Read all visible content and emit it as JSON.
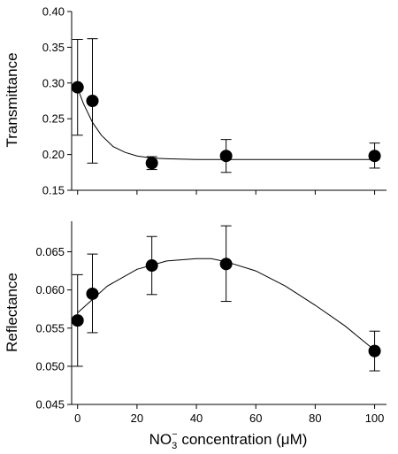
{
  "chart_data": [
    {
      "type": "scatter",
      "ylabel": "Transmittance",
      "xlabel": "",
      "ylim": [
        0.15,
        0.4
      ],
      "yticks": [
        0.15,
        0.2,
        0.25,
        0.3,
        0.35,
        0.4
      ],
      "ytick_labels": [
        "0.15",
        "0.20",
        "0.25",
        "0.30",
        "0.35",
        "0.40"
      ],
      "xlim": [
        -2,
        104
      ],
      "xticks": [
        0,
        20,
        40,
        60,
        80,
        100
      ],
      "show_xtick_labels": false,
      "fit": "exponential decay",
      "points": [
        {
          "x": 0,
          "y": 0.294,
          "err_low": 0.227,
          "err_high": 0.361
        },
        {
          "x": 5,
          "y": 0.275,
          "err_low": 0.188,
          "err_high": 0.362
        },
        {
          "x": 25,
          "y": 0.188,
          "err_low": 0.179,
          "err_high": 0.197
        },
        {
          "x": 50,
          "y": 0.198,
          "err_low": 0.175,
          "err_high": 0.221
        },
        {
          "x": 100,
          "y": 0.198,
          "err_low": 0.181,
          "err_high": 0.216
        }
      ],
      "fit_curve": {
        "x": [
          0,
          2,
          5,
          8,
          12,
          16,
          20,
          25,
          30,
          40,
          50,
          60,
          70,
          80,
          90,
          100
        ],
        "y": [
          0.293,
          0.271,
          0.245,
          0.227,
          0.211,
          0.203,
          0.198,
          0.195,
          0.194,
          0.193,
          0.193,
          0.193,
          0.193,
          0.193,
          0.193,
          0.193
        ]
      }
    },
    {
      "type": "scatter",
      "ylabel": "Reflectance",
      "xlabel": "NO3⁻ concentration (μM)",
      "xlabel_parts": {
        "base": "NO",
        "sub": "3",
        "sup": "−",
        "rest": " concentration (μM)"
      },
      "ylim": [
        0.045,
        0.069
      ],
      "yticks": [
        0.045,
        0.05,
        0.055,
        0.06,
        0.065
      ],
      "ytick_labels": [
        "0.045",
        "0.050",
        "0.055",
        "0.060",
        "0.065"
      ],
      "xlim": [
        -2,
        104
      ],
      "xticks": [
        0,
        20,
        40,
        60,
        80,
        100
      ],
      "xtick_labels": [
        "0",
        "20",
        "40",
        "60",
        "80",
        "100"
      ],
      "fit": "quadratic",
      "points": [
        {
          "x": 0,
          "y": 0.056,
          "err_low": 0.05,
          "err_high": 0.062
        },
        {
          "x": 5,
          "y": 0.0595,
          "err_low": 0.0544,
          "err_high": 0.0647
        },
        {
          "x": 25,
          "y": 0.0632,
          "err_low": 0.0594,
          "err_high": 0.067
        },
        {
          "x": 50,
          "y": 0.0634,
          "err_low": 0.0585,
          "err_high": 0.0684
        },
        {
          "x": 100,
          "y": 0.052,
          "err_low": 0.0494,
          "err_high": 0.0546
        }
      ],
      "fit_curve": {
        "x": [
          0,
          10,
          20,
          30,
          40,
          45,
          50,
          60,
          70,
          80,
          90,
          100
        ],
        "y": [
          0.057,
          0.0605,
          0.0627,
          0.0638,
          0.0641,
          0.0641,
          0.0637,
          0.0625,
          0.0605,
          0.058,
          0.0553,
          0.0521
        ]
      }
    }
  ]
}
